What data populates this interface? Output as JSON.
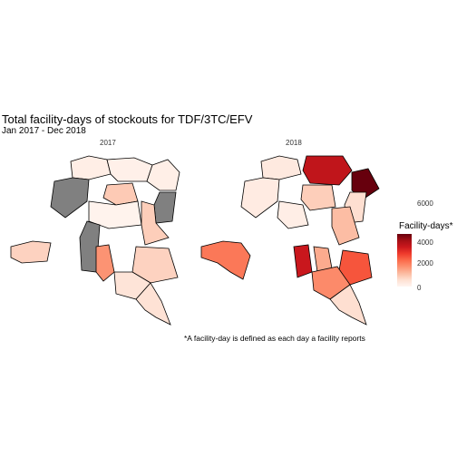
{
  "title": "Total facility-days of stockouts for TDF/3TC/EFV",
  "subtitle": "Jan 2017 - Dec 2018",
  "caption": "*A facility-day is defined as each day a facility reports",
  "panels": [
    {
      "label": "2017",
      "regions": [
        {
          "name": "northwest",
          "value": 300
        },
        {
          "name": "north-center",
          "value": 200
        },
        {
          "name": "northeast",
          "value": 250
        },
        {
          "name": "west-grey",
          "value": null
        },
        {
          "name": "center-north",
          "value": 1400
        },
        {
          "name": "east-grey",
          "value": null
        },
        {
          "name": "center",
          "value": 100
        },
        {
          "name": "east-central",
          "value": 1300
        },
        {
          "name": "kinshasa-corridor",
          "value": 1200
        },
        {
          "name": "grey-center",
          "value": null
        },
        {
          "name": "kasai-center",
          "value": 2600
        },
        {
          "name": "southeast",
          "value": 1200
        },
        {
          "name": "south",
          "value": 700
        },
        {
          "name": "far-south",
          "value": 800
        }
      ]
    },
    {
      "label": "2018",
      "regions": [
        {
          "name": "northwest",
          "value": 500
        },
        {
          "name": "north-center",
          "value": 5500
        },
        {
          "name": "northeast",
          "value": 7000
        },
        {
          "name": "west",
          "value": 400
        },
        {
          "name": "center-north",
          "value": 1300
        },
        {
          "name": "east",
          "value": 900
        },
        {
          "name": "center",
          "value": 300
        },
        {
          "name": "east-central",
          "value": 1700
        },
        {
          "name": "kinshasa-corridor",
          "value": 3200
        },
        {
          "name": "kasai-center",
          "value": 5300
        },
        {
          "name": "kasai-south",
          "value": 2100
        },
        {
          "name": "southeast",
          "value": 3900
        },
        {
          "name": "south",
          "value": 2800
        },
        {
          "name": "far-south",
          "value": 900
        }
      ]
    }
  ],
  "legend": {
    "title": "Facility-days*",
    "ticks": [
      "6000",
      "4000",
      "2000",
      "0"
    ],
    "scale": [
      "#fff5f0",
      "#67000d"
    ],
    "domain": [
      0,
      7000
    ],
    "missing_color": "#808080"
  },
  "chart_data": {
    "type": "heatmap",
    "title": "Total facility-days of stockouts for TDF/3TC/EFV",
    "subtitle": "Jan 2017 - Dec 2018",
    "x": [
      "2017",
      "2018"
    ],
    "legend_title": "Facility-days*",
    "zlim": [
      0,
      7000
    ]
  }
}
